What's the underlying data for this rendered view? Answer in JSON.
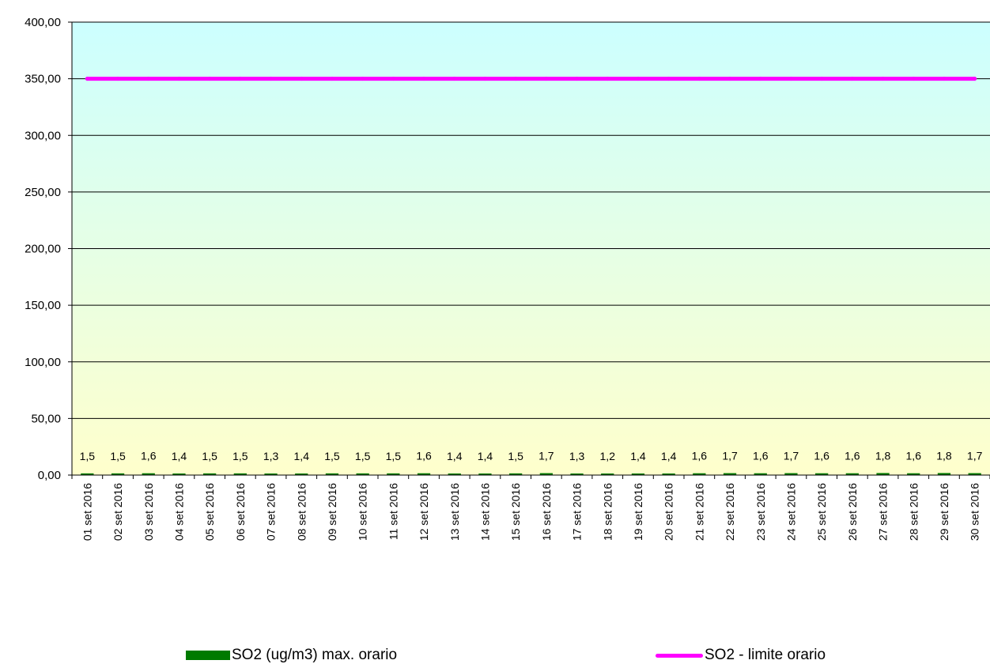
{
  "chart_data": {
    "type": "bar",
    "title": "",
    "xlabel": "",
    "ylabel": "",
    "ylim": [
      0,
      400
    ],
    "y_ticks": [
      "0,00",
      "50,00",
      "100,00",
      "150,00",
      "200,00",
      "250,00",
      "300,00",
      "350,00",
      "400,00"
    ],
    "grid": "horizontal",
    "legend_position": "bottom",
    "categories": [
      "01 set 2016",
      "02 set 2016",
      "03 set 2016",
      "04 set 2016",
      "05 set 2016",
      "06 set 2016",
      "07 set 2016",
      "08 set 2016",
      "09 set 2016",
      "10 set 2016",
      "11 set 2016",
      "12 set 2016",
      "13 set 2016",
      "14 set 2016",
      "15 set 2016",
      "16 set 2016",
      "17 set 2016",
      "18 set 2016",
      "19 set 2016",
      "20 set 2016",
      "21 set 2016",
      "22 set 2016",
      "23 set 2016",
      "24 set 2016",
      "25 set 2016",
      "26 set 2016",
      "27 set 2016",
      "28 set 2016",
      "29 set 2016",
      "30 set 2016"
    ],
    "series": [
      {
        "name": "SO2 (ug/m3) max. orario",
        "kind": "bar",
        "color": "#007a00",
        "values": [
          1.5,
          1.5,
          1.6,
          1.4,
          1.5,
          1.5,
          1.3,
          1.4,
          1.5,
          1.5,
          1.5,
          1.6,
          1.4,
          1.4,
          1.5,
          1.7,
          1.3,
          1.2,
          1.4,
          1.4,
          1.6,
          1.7,
          1.6,
          1.7,
          1.6,
          1.6,
          1.8,
          1.6,
          1.8,
          1.7
        ],
        "labels": [
          "1,5",
          "1,5",
          "1,6",
          "1,4",
          "1,5",
          "1,5",
          "1,3",
          "1,4",
          "1,5",
          "1,5",
          "1,5",
          "1,6",
          "1,4",
          "1,4",
          "1,5",
          "1,7",
          "1,3",
          "1,2",
          "1,4",
          "1,4",
          "1,6",
          "1,7",
          "1,6",
          "1,7",
          "1,6",
          "1,6",
          "1,8",
          "1,6",
          "1,8",
          "1,7"
        ]
      },
      {
        "name": "SO2 - limite orario",
        "kind": "line",
        "color": "#ff00ff",
        "values": [
          350,
          350,
          350,
          350,
          350,
          350,
          350,
          350,
          350,
          350,
          350,
          350,
          350,
          350,
          350,
          350,
          350,
          350,
          350,
          350,
          350,
          350,
          350,
          350,
          350,
          350,
          350,
          350,
          350,
          350
        ]
      }
    ],
    "background_gradient": {
      "top": "#ccffff",
      "bottom": "#ffffcc"
    }
  },
  "legend": {
    "bar_label": "SO2 (ug/m3) max. orario",
    "line_label": "SO2 - limite orario"
  }
}
